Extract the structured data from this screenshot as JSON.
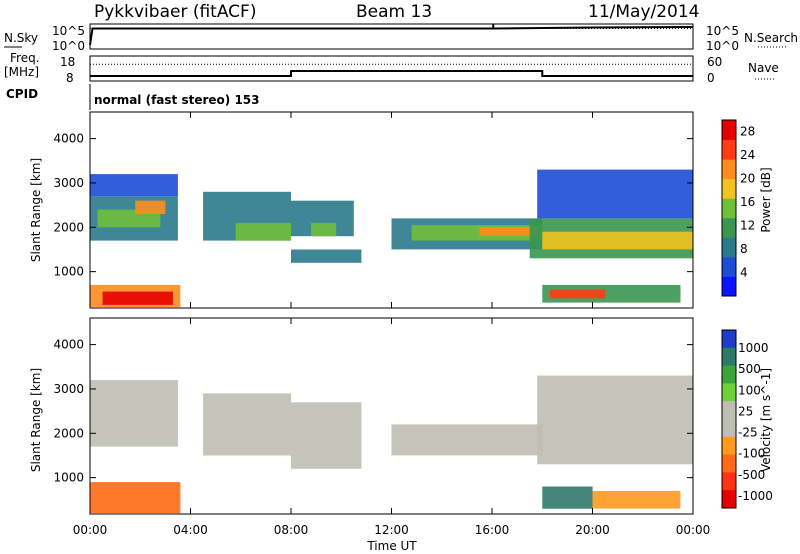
{
  "header": {
    "station": "Pykkvibaer (fitACF)",
    "beam": "Beam 13",
    "date": "11/May/2014"
  },
  "strips": {
    "nsky_label": "N.Sky",
    "nsky_top_tick": "10^5",
    "nsky_bottom_tick": "10^0",
    "nsearch_label": "N.Search",
    "nsearch_top_tick": "10^5",
    "nsearch_bottom_tick": "10^0",
    "freq_label": "Freq.",
    "freq_unit": "[MHz]",
    "freq_top_tick": "18",
    "freq_bottom_tick": "8",
    "nave_label": "Nave",
    "nave_top_tick": "60",
    "nave_bottom_tick": "0",
    "cpid_label": "CPID",
    "cpid_value": "normal (fast stereo) 153"
  },
  "colors": {
    "power_scale": [
      "#0a14ff",
      "#1c4cd8",
      "#2a7a8c",
      "#3a9650",
      "#6fbf3a",
      "#f2c21e",
      "#ff8c1e",
      "#ff3c14",
      "#e60000"
    ],
    "velocity_scale": [
      "#1e3cc8",
      "#2e7a6a",
      "#3aa43a",
      "#6ed23a",
      "#bebeb4",
      "#bebeb4",
      "#ff9a1e",
      "#ff6a14",
      "#ff3214",
      "#e60000"
    ]
  },
  "chart_data": [
    {
      "type": "line",
      "title": "",
      "xlabel": "",
      "ylabel": "N.Sky",
      "y2label": "N.Search",
      "series": [
        {
          "name": "N.Sky",
          "x": [
            0,
            0.1,
            4,
            8,
            12,
            16,
            18,
            20,
            24
          ],
          "y": [
            0.8,
            4.1,
            4.1,
            4.1,
            4.1,
            4.1,
            4.2,
            4.3,
            4.4
          ]
        },
        {
          "name": "N.Search",
          "x": [
            0,
            24
          ],
          "y": [
            4.1,
            4.1
          ]
        }
      ],
      "spikes": [
        {
          "x": 16.05,
          "y": 5.0
        }
      ],
      "xlim": [
        0,
        24
      ],
      "ylim": [
        0,
        5
      ]
    },
    {
      "type": "line",
      "title": "",
      "xlabel": "",
      "ylabel": "Freq. [MHz]",
      "y2label": "Nave",
      "series": [
        {
          "name": "Freq.",
          "x": [
            0,
            8,
            8,
            18,
            18,
            24
          ],
          "y": [
            10.0,
            10.0,
            12.0,
            12.0,
            10.0,
            10.0
          ]
        },
        {
          "name": "Nave",
          "x": [
            0,
            24
          ],
          "y": [
            40,
            40
          ]
        }
      ],
      "xlim": [
        0,
        24
      ],
      "ylim": [
        8,
        18
      ],
      "y2lim": [
        0,
        60
      ]
    },
    {
      "type": "heatmap",
      "title": "",
      "xlabel": "",
      "ylabel": "Slant Range [km]",
      "colorbar_label": "Power [dB]",
      "colorbar_ticks": [
        4,
        8,
        12,
        16,
        20,
        24,
        28
      ],
      "colorbar_range": [
        0,
        30
      ],
      "xlim": [
        0,
        24
      ],
      "ylim": [
        180,
        4600
      ],
      "yticks": [
        1000,
        2000,
        3000,
        4000
      ],
      "bands": [
        {
          "x0": 0.0,
          "x1": 3.5,
          "y0": 1700,
          "y1": 2700,
          "value": 8
        },
        {
          "x0": 0.3,
          "x1": 2.8,
          "y0": 2000,
          "y1": 2400,
          "value": 16
        },
        {
          "x0": 1.8,
          "x1": 3.0,
          "y0": 2300,
          "y1": 2600,
          "value": 22
        },
        {
          "x0": 0.0,
          "x1": 3.5,
          "y0": 2700,
          "y1": 3200,
          "value": 6
        },
        {
          "x0": 0.0,
          "x1": 3.6,
          "y0": 200,
          "y1": 700,
          "value": 20
        },
        {
          "x0": 0.5,
          "x1": 3.3,
          "y0": 250,
          "y1": 550,
          "value": 28
        },
        {
          "x0": 4.5,
          "x1": 8.0,
          "y0": 1700,
          "y1": 2800,
          "value": 9
        },
        {
          "x0": 5.8,
          "x1": 8.0,
          "y0": 1700,
          "y1": 2100,
          "value": 15
        },
        {
          "x0": 8.0,
          "x1": 10.8,
          "y0": 1200,
          "y1": 1500,
          "value": 7
        },
        {
          "x0": 8.0,
          "x1": 10.5,
          "y0": 1800,
          "y1": 2600,
          "value": 9
        },
        {
          "x0": 8.8,
          "x1": 9.8,
          "y0": 1800,
          "y1": 2100,
          "value": 16
        },
        {
          "x0": 12.0,
          "x1": 18.0,
          "y0": 1500,
          "y1": 2200,
          "value": 8
        },
        {
          "x0": 12.8,
          "x1": 18.0,
          "y0": 1700,
          "y1": 2050,
          "value": 16
        },
        {
          "x0": 15.5,
          "x1": 17.8,
          "y0": 1800,
          "y1": 2000,
          "value": 22
        },
        {
          "x0": 17.5,
          "x1": 24.0,
          "y0": 1300,
          "y1": 2200,
          "value": 10
        },
        {
          "x0": 18.0,
          "x1": 24.0,
          "y0": 1500,
          "y1": 1900,
          "value": 18
        },
        {
          "x0": 17.8,
          "x1": 24.0,
          "y0": 2200,
          "y1": 3300,
          "value": 5
        },
        {
          "x0": 18.0,
          "x1": 23.5,
          "y0": 300,
          "y1": 700,
          "value": 10
        },
        {
          "x0": 18.3,
          "x1": 20.5,
          "y0": 400,
          "y1": 600,
          "value": 24
        }
      ]
    },
    {
      "type": "heatmap",
      "title": "",
      "xlabel": "Time UT",
      "ylabel": "Slant Range [km]",
      "colorbar_label": "Velocity [m s^-1]",
      "colorbar_ticks": [
        1000,
        500,
        100,
        25,
        -25,
        -100,
        -500,
        -1000
      ],
      "xlim": [
        0,
        24
      ],
      "ylim": [
        180,
        4600
      ],
      "yticks": [
        1000,
        2000,
        3000,
        4000
      ],
      "xticks": [
        "00:00",
        "04:00",
        "08:00",
        "12:00",
        "16:00",
        "20:00",
        "00:00"
      ],
      "bands": [
        {
          "x0": 0.0,
          "x1": 3.5,
          "y0": 1700,
          "y1": 3200,
          "value": 0
        },
        {
          "x0": 0.0,
          "x1": 3.6,
          "y0": 200,
          "y1": 900,
          "value": -200
        },
        {
          "x0": 4.5,
          "x1": 8.0,
          "y0": 1500,
          "y1": 2900,
          "value": 0
        },
        {
          "x0": 8.0,
          "x1": 10.8,
          "y0": 1200,
          "y1": 2700,
          "value": 0
        },
        {
          "x0": 12.0,
          "x1": 18.0,
          "y0": 1500,
          "y1": 2200,
          "value": 0
        },
        {
          "x0": 17.8,
          "x1": 24.0,
          "y0": 1300,
          "y1": 3300,
          "value": 0
        },
        {
          "x0": 18.0,
          "x1": 20.0,
          "y0": 300,
          "y1": 800,
          "value": 300
        },
        {
          "x0": 20.0,
          "x1": 23.5,
          "y0": 300,
          "y1": 700,
          "value": -80
        }
      ]
    }
  ]
}
